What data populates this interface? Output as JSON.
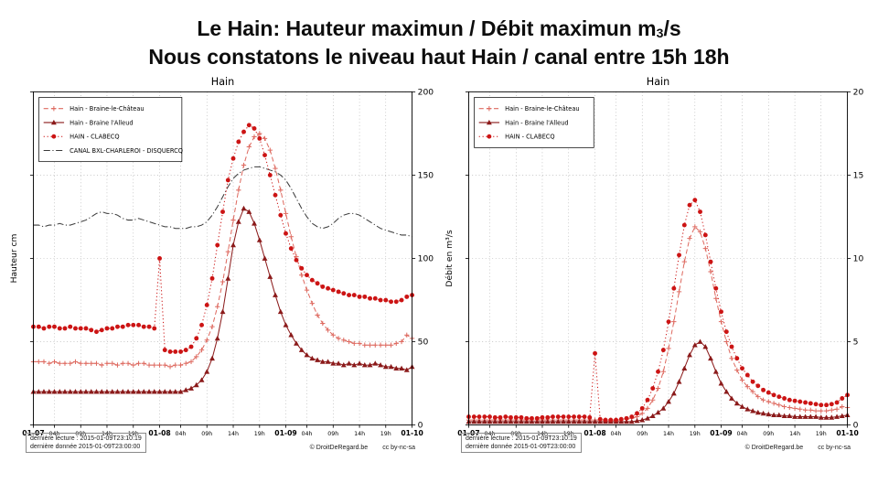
{
  "slide": {
    "title_line1_main": "Le Hain: Hauteur maximun  / Débit maximun m",
    "title_line1_sub": "3",
    "title_line1_end": "/s",
    "title_line2": "Nous constatons le niveau haut Hain / canal entre 15h 18h"
  },
  "footer": {
    "lecture": "dernière lecture : 2015-01-09T23:10:19",
    "donnee": "dernière donnée  2015-01-09T23:00:00",
    "credit": "© DroitDeRegard.be",
    "license": "cc by-nc-sa"
  },
  "chart_data": [
    {
      "type": "line",
      "title": "Hain",
      "xlabel": "",
      "ylabel": "Hauteur cm",
      "ylim": [
        0,
        200
      ],
      "yticks": [
        0,
        50,
        100,
        150,
        200
      ],
      "xlim": [
        0,
        72
      ],
      "x_start": 0,
      "x_step": 1,
      "grid": true,
      "legend_position": "upper-left",
      "xticks": [
        {
          "x": 0,
          "label": "01-07",
          "major": true
        },
        {
          "x": 4,
          "label": "04h"
        },
        {
          "x": 9,
          "label": "09h"
        },
        {
          "x": 14,
          "label": "14h"
        },
        {
          "x": 19,
          "label": "19h"
        },
        {
          "x": 24,
          "label": "01-08",
          "major": true
        },
        {
          "x": 28,
          "label": "04h"
        },
        {
          "x": 33,
          "label": "09h"
        },
        {
          "x": 38,
          "label": "14h"
        },
        {
          "x": 43,
          "label": "19h"
        },
        {
          "x": 48,
          "label": "01-09",
          "major": true
        },
        {
          "x": 52,
          "label": "04h"
        },
        {
          "x": 57,
          "label": "09h"
        },
        {
          "x": 62,
          "label": "14h"
        },
        {
          "x": 67,
          "label": "19h"
        },
        {
          "x": 72,
          "label": "01-10",
          "major": true
        }
      ],
      "series": [
        {
          "name": "Hain - Braine-le-Château",
          "color": "#de6a60",
          "line": "dashed",
          "marker": "plus",
          "values": [
            38,
            38,
            38,
            37,
            38,
            37,
            37,
            37,
            38,
            37,
            37,
            37,
            37,
            36,
            37,
            37,
            36,
            37,
            37,
            36,
            37,
            37,
            36,
            36,
            36,
            36,
            35,
            36,
            36,
            37,
            38,
            41,
            45,
            51,
            59,
            71,
            86,
            104,
            123,
            141,
            156,
            167,
            173,
            175,
            172,
            165,
            154,
            141,
            127,
            113,
            101,
            90,
            81,
            73,
            66,
            61,
            57,
            54,
            52,
            51,
            50,
            49,
            49,
            48,
            48,
            48,
            48,
            48,
            48,
            49,
            50,
            54,
            52
          ]
        },
        {
          "name": "Hain - Braine l'Alleud",
          "color": "#8b1a1a",
          "line": "solid",
          "marker": "triangle",
          "values": [
            20,
            20,
            20,
            20,
            20,
            20,
            20,
            20,
            20,
            20,
            20,
            20,
            20,
            20,
            20,
            20,
            20,
            20,
            20,
            20,
            20,
            20,
            20,
            20,
            20,
            20,
            20,
            20,
            20,
            21,
            22,
            24,
            27,
            32,
            40,
            52,
            68,
            88,
            108,
            122,
            130,
            128,
            121,
            111,
            100,
            89,
            78,
            68,
            60,
            54,
            49,
            45,
            42,
            40,
            39,
            38,
            38,
            37,
            37,
            36,
            37,
            36,
            37,
            36,
            36,
            37,
            36,
            35,
            35,
            34,
            34,
            33,
            35
          ]
        },
        {
          "name": "HAIN - CLABECQ",
          "color": "#cc1414",
          "line": "dotted",
          "marker": "circle",
          "values": [
            59,
            59,
            58,
            59,
            59,
            58,
            58,
            59,
            58,
            58,
            58,
            57,
            56,
            57,
            58,
            58,
            59,
            59,
            60,
            60,
            60,
            59,
            59,
            58,
            100,
            45,
            44,
            44,
            44,
            45,
            47,
            52,
            60,
            72,
            88,
            108,
            128,
            147,
            160,
            170,
            176,
            180,
            178,
            172,
            162,
            150,
            138,
            126,
            115,
            106,
            99,
            94,
            90,
            87,
            85,
            83,
            82,
            81,
            80,
            79,
            78,
            78,
            77,
            77,
            76,
            76,
            75,
            75,
            74,
            74,
            75,
            77,
            78
          ]
        },
        {
          "name": "CANAL BXL-CHARLEROI - DISQUERCQ",
          "color": "#3a3a3a",
          "line": "dashdot",
          "marker": "none",
          "values": [
            120,
            120,
            119,
            120,
            120,
            121,
            120,
            120,
            121,
            122,
            123,
            125,
            127,
            128,
            127,
            127,
            126,
            124,
            123,
            123,
            124,
            123,
            122,
            121,
            120,
            119,
            119,
            118,
            118,
            118,
            119,
            119,
            120,
            122,
            126,
            131,
            137,
            143,
            148,
            151,
            153,
            154,
            155,
            155,
            154,
            153,
            152,
            150,
            147,
            142,
            136,
            130,
            125,
            121,
            119,
            118,
            119,
            121,
            124,
            126,
            127,
            127,
            126,
            124,
            122,
            120,
            118,
            117,
            116,
            115,
            114,
            114,
            113
          ]
        }
      ]
    },
    {
      "type": "line",
      "title": "Hain",
      "xlabel": "",
      "ylabel": "Débit en m³/s",
      "ylim": [
        0,
        20
      ],
      "yticks": [
        0,
        5,
        10,
        15,
        20
      ],
      "xlim": [
        0,
        72
      ],
      "x_start": 0,
      "x_step": 1,
      "grid": true,
      "legend_position": "upper-left",
      "xticks": [
        {
          "x": 0,
          "label": "01-07",
          "major": true
        },
        {
          "x": 4,
          "label": "04h"
        },
        {
          "x": 9,
          "label": "09h"
        },
        {
          "x": 14,
          "label": "14h"
        },
        {
          "x": 19,
          "label": "19h"
        },
        {
          "x": 24,
          "label": "01-08",
          "major": true
        },
        {
          "x": 28,
          "label": "04h"
        },
        {
          "x": 33,
          "label": "09h"
        },
        {
          "x": 38,
          "label": "14h"
        },
        {
          "x": 43,
          "label": "19h"
        },
        {
          "x": 48,
          "label": "01-09",
          "major": true
        },
        {
          "x": 52,
          "label": "04h"
        },
        {
          "x": 57,
          "label": "09h"
        },
        {
          "x": 62,
          "label": "14h"
        },
        {
          "x": 67,
          "label": "19h"
        },
        {
          "x": 72,
          "label": "01-10",
          "major": true
        }
      ],
      "series": [
        {
          "name": "Hain - Braine-le-Château",
          "color": "#de6a60",
          "line": "dashed",
          "marker": "plus",
          "values": [
            0.3,
            0.3,
            0.3,
            0.3,
            0.3,
            0.3,
            0.3,
            0.3,
            0.3,
            0.3,
            0.3,
            0.3,
            0.3,
            0.3,
            0.3,
            0.3,
            0.3,
            0.3,
            0.3,
            0.3,
            0.3,
            0.3,
            0.3,
            0.3,
            0.3,
            0.3,
            0.3,
            0.3,
            0.3,
            0.3,
            0.35,
            0.4,
            0.5,
            0.7,
            1.0,
            1.5,
            2.2,
            3.2,
            4.6,
            6.2,
            8.0,
            9.8,
            11.2,
            11.9,
            11.6,
            10.6,
            9.2,
            7.6,
            6.2,
            5.0,
            4.0,
            3.3,
            2.7,
            2.3,
            2.0,
            1.7,
            1.5,
            1.4,
            1.3,
            1.2,
            1.1,
            1.05,
            1.0,
            0.95,
            0.9,
            0.9,
            0.85,
            0.85,
            0.85,
            0.9,
            0.95,
            1.1,
            1.05
          ]
        },
        {
          "name": "Hain - Braine l'Alleud",
          "color": "#8b1a1a",
          "line": "solid",
          "marker": "triangle",
          "values": [
            0.2,
            0.2,
            0.2,
            0.2,
            0.2,
            0.2,
            0.2,
            0.2,
            0.2,
            0.2,
            0.2,
            0.2,
            0.2,
            0.2,
            0.2,
            0.2,
            0.2,
            0.2,
            0.2,
            0.2,
            0.2,
            0.2,
            0.2,
            0.2,
            0.2,
            0.2,
            0.2,
            0.2,
            0.2,
            0.2,
            0.2,
            0.2,
            0.25,
            0.3,
            0.4,
            0.55,
            0.75,
            1.0,
            1.4,
            1.9,
            2.6,
            3.4,
            4.2,
            4.8,
            5.0,
            4.7,
            4.0,
            3.2,
            2.5,
            2.0,
            1.6,
            1.3,
            1.1,
            0.95,
            0.85,
            0.75,
            0.7,
            0.65,
            0.6,
            0.6,
            0.55,
            0.55,
            0.5,
            0.5,
            0.5,
            0.5,
            0.5,
            0.45,
            0.45,
            0.45,
            0.5,
            0.55,
            0.6
          ]
        },
        {
          "name": "HAIN - CLABECQ",
          "color": "#cc1414",
          "line": "dotted",
          "marker": "circle",
          "values": [
            0.5,
            0.5,
            0.5,
            0.5,
            0.5,
            0.45,
            0.45,
            0.5,
            0.45,
            0.45,
            0.45,
            0.4,
            0.4,
            0.4,
            0.45,
            0.45,
            0.5,
            0.5,
            0.5,
            0.5,
            0.5,
            0.5,
            0.5,
            0.45,
            4.3,
            0.35,
            0.3,
            0.3,
            0.3,
            0.35,
            0.4,
            0.5,
            0.7,
            1.0,
            1.5,
            2.2,
            3.2,
            4.5,
            6.2,
            8.2,
            10.2,
            12.0,
            13.2,
            13.5,
            12.8,
            11.4,
            9.8,
            8.2,
            6.8,
            5.6,
            4.7,
            4.0,
            3.4,
            3.0,
            2.6,
            2.35,
            2.1,
            1.95,
            1.8,
            1.7,
            1.6,
            1.5,
            1.45,
            1.4,
            1.35,
            1.3,
            1.25,
            1.2,
            1.2,
            1.25,
            1.35,
            1.6,
            1.8
          ]
        }
      ]
    }
  ]
}
